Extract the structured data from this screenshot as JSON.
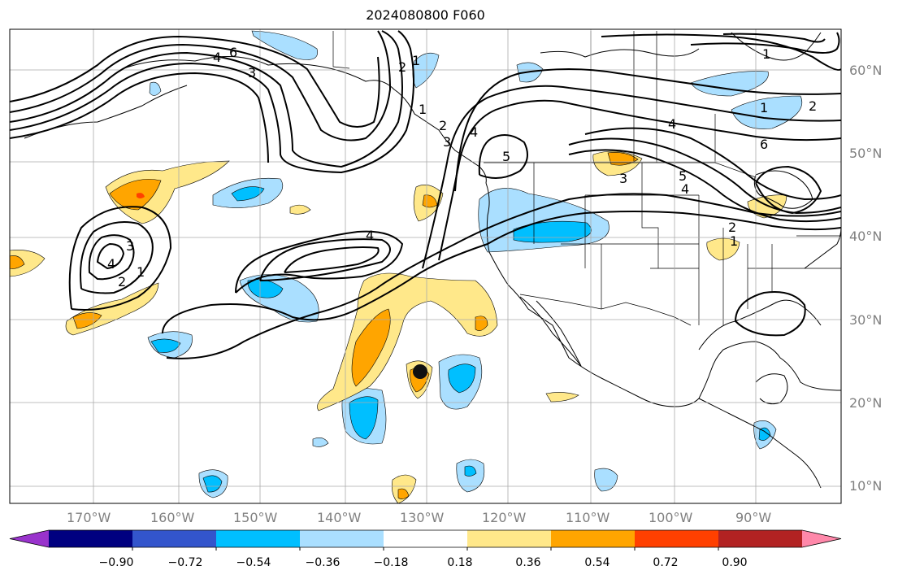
{
  "title": "2024080800 F060",
  "lat_labels": [
    "60°N",
    "50°N",
    "40°N",
    "30°N",
    "20°N",
    "10°N"
  ],
  "lon_labels": [
    "170°W",
    "160°W",
    "150°W",
    "140°W",
    "130°W",
    "120°W",
    "110°W",
    "100°W",
    "90°W"
  ],
  "colorbar": {
    "tick_labels": [
      "−0.90",
      "−0.72",
      "−0.54",
      "−0.36",
      "−0.18",
      "0.18",
      "0.36",
      "0.54",
      "0.72",
      "0.90"
    ],
    "colors": [
      "#9933cc",
      "#000080",
      "#3355cc",
      "#00bfff",
      "#aadfff",
      "#ffffff",
      "#ffe88a",
      "#ffa500",
      "#ff4000",
      "#b22222",
      "#ff88aa"
    ]
  },
  "contour_labels": [
    "1",
    "2",
    "3",
    "4",
    "5",
    "6"
  ],
  "colors": {
    "light_blue": "#aadfff",
    "blue": "#00bfff",
    "yellow": "#ffe88a",
    "orange": "#ffa500",
    "red": "#ff4000",
    "contour": "#000000",
    "grid": "#aaaaaa"
  }
}
